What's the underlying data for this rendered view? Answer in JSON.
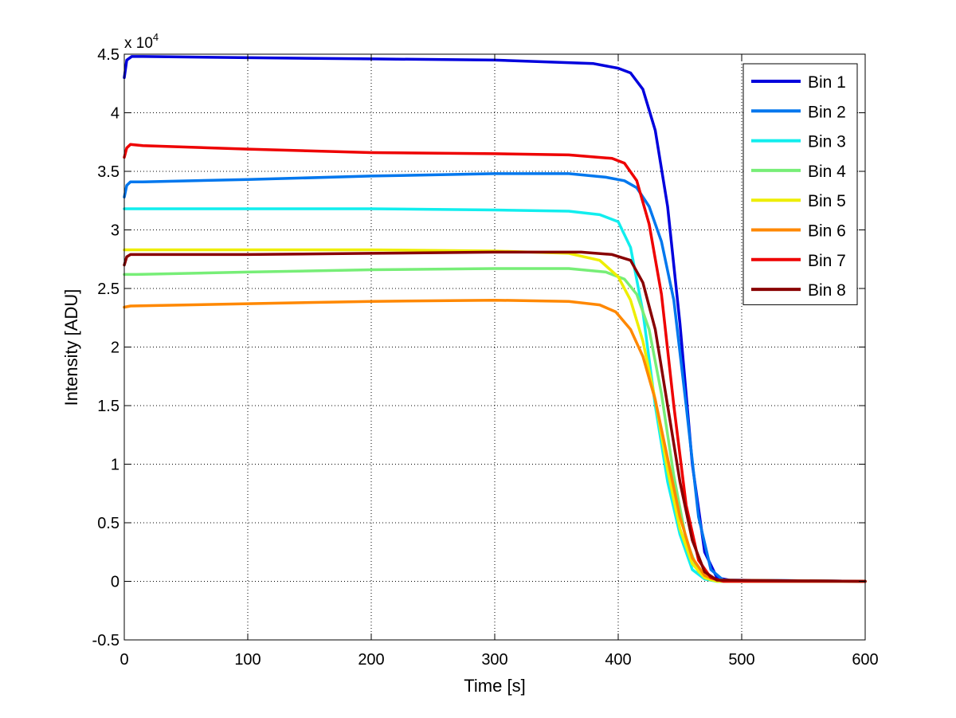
{
  "chart_data": {
    "type": "line",
    "xlabel": "Time [s]",
    "ylabel": "Intensity [ADU]",
    "y_multiplier": {
      "base": "x 10",
      "exponent": "4",
      "value": 10000
    },
    "xlim": [
      0,
      600
    ],
    "ylim": [
      -0.5,
      4.5
    ],
    "x_ticks": [
      0,
      100,
      200,
      300,
      400,
      500,
      600
    ],
    "x_tick_labels": [
      "0",
      "100",
      "200",
      "300",
      "400",
      "500",
      "600"
    ],
    "y_ticks": [
      -0.5,
      0,
      0.5,
      1,
      1.5,
      2,
      2.5,
      3,
      3.5,
      4,
      4.5
    ],
    "y_tick_labels": [
      "-0.5",
      "0",
      "0.5",
      "1",
      "1.5",
      "2",
      "2.5",
      "3",
      "3.5",
      "4",
      "4.5"
    ],
    "grid": true,
    "legend_position": "top-right",
    "series": [
      {
        "name": "Bin 1",
        "color": "#0000dd",
        "points": [
          [
            0,
            4.3
          ],
          [
            2,
            4.45
          ],
          [
            6,
            4.48
          ],
          [
            15,
            4.48
          ],
          [
            100,
            4.47
          ],
          [
            200,
            4.46
          ],
          [
            300,
            4.45
          ],
          [
            380,
            4.42
          ],
          [
            400,
            4.38
          ],
          [
            410,
            4.34
          ],
          [
            420,
            4.2
          ],
          [
            430,
            3.85
          ],
          [
            440,
            3.2
          ],
          [
            450,
            2.2
          ],
          [
            460,
            1.0
          ],
          [
            470,
            0.25
          ],
          [
            480,
            0.03
          ],
          [
            490,
            0.01
          ],
          [
            600,
            0.0
          ]
        ]
      },
      {
        "name": "Bin 2",
        "color": "#0077ee",
        "points": [
          [
            0,
            3.28
          ],
          [
            2,
            3.38
          ],
          [
            5,
            3.41
          ],
          [
            15,
            3.41
          ],
          [
            100,
            3.43
          ],
          [
            200,
            3.46
          ],
          [
            300,
            3.48
          ],
          [
            360,
            3.48
          ],
          [
            390,
            3.45
          ],
          [
            405,
            3.42
          ],
          [
            415,
            3.36
          ],
          [
            425,
            3.2
          ],
          [
            435,
            2.9
          ],
          [
            445,
            2.4
          ],
          [
            455,
            1.5
          ],
          [
            465,
            0.55
          ],
          [
            475,
            0.1
          ],
          [
            485,
            0.01
          ],
          [
            600,
            0.0
          ]
        ]
      },
      {
        "name": "Bin 3",
        "color": "#11eeee",
        "points": [
          [
            0,
            3.18
          ],
          [
            10,
            3.18
          ],
          [
            100,
            3.18
          ],
          [
            200,
            3.18
          ],
          [
            300,
            3.17
          ],
          [
            360,
            3.16
          ],
          [
            385,
            3.13
          ],
          [
            400,
            3.07
          ],
          [
            410,
            2.85
          ],
          [
            420,
            2.3
          ],
          [
            430,
            1.5
          ],
          [
            440,
            0.85
          ],
          [
            450,
            0.4
          ],
          [
            460,
            0.1
          ],
          [
            470,
            0.02
          ],
          [
            480,
            0.0
          ],
          [
            600,
            0.0
          ]
        ]
      },
      {
        "name": "Bin 4",
        "color": "#77ee77",
        "points": [
          [
            0,
            2.62
          ],
          [
            10,
            2.62
          ],
          [
            100,
            2.64
          ],
          [
            200,
            2.66
          ],
          [
            300,
            2.67
          ],
          [
            360,
            2.67
          ],
          [
            390,
            2.64
          ],
          [
            405,
            2.58
          ],
          [
            415,
            2.45
          ],
          [
            425,
            2.15
          ],
          [
            435,
            1.6
          ],
          [
            445,
            0.9
          ],
          [
            455,
            0.35
          ],
          [
            465,
            0.08
          ],
          [
            475,
            0.01
          ],
          [
            600,
            0.0
          ]
        ]
      },
      {
        "name": "Bin 5",
        "color": "#eeee00",
        "points": [
          [
            0,
            2.83
          ],
          [
            10,
            2.83
          ],
          [
            100,
            2.83
          ],
          [
            200,
            2.83
          ],
          [
            300,
            2.82
          ],
          [
            360,
            2.8
          ],
          [
            385,
            2.74
          ],
          [
            400,
            2.6
          ],
          [
            410,
            2.4
          ],
          [
            420,
            2.05
          ],
          [
            430,
            1.55
          ],
          [
            440,
            0.95
          ],
          [
            450,
            0.45
          ],
          [
            460,
            0.15
          ],
          [
            470,
            0.03
          ],
          [
            480,
            0.0
          ],
          [
            600,
            0.0
          ]
        ]
      },
      {
        "name": "Bin 6",
        "color": "#ff8800",
        "points": [
          [
            0,
            2.34
          ],
          [
            5,
            2.35
          ],
          [
            100,
            2.37
          ],
          [
            200,
            2.39
          ],
          [
            300,
            2.4
          ],
          [
            360,
            2.39
          ],
          [
            385,
            2.36
          ],
          [
            398,
            2.3
          ],
          [
            410,
            2.15
          ],
          [
            420,
            1.92
          ],
          [
            430,
            1.55
          ],
          [
            440,
            1.05
          ],
          [
            450,
            0.55
          ],
          [
            460,
            0.2
          ],
          [
            470,
            0.05
          ],
          [
            480,
            0.01
          ],
          [
            600,
            0.0
          ]
        ]
      },
      {
        "name": "Bin 7",
        "color": "#ee0000",
        "points": [
          [
            0,
            3.62
          ],
          [
            2,
            3.7
          ],
          [
            5,
            3.73
          ],
          [
            15,
            3.72
          ],
          [
            100,
            3.69
          ],
          [
            200,
            3.66
          ],
          [
            300,
            3.65
          ],
          [
            360,
            3.64
          ],
          [
            395,
            3.61
          ],
          [
            405,
            3.57
          ],
          [
            415,
            3.42
          ],
          [
            425,
            3.05
          ],
          [
            435,
            2.45
          ],
          [
            445,
            1.5
          ],
          [
            455,
            0.65
          ],
          [
            465,
            0.18
          ],
          [
            475,
            0.03
          ],
          [
            485,
            0.0
          ],
          [
            600,
            0.0
          ]
        ]
      },
      {
        "name": "Bin 8",
        "color": "#880000",
        "points": [
          [
            0,
            2.7
          ],
          [
            2,
            2.77
          ],
          [
            5,
            2.79
          ],
          [
            15,
            2.79
          ],
          [
            100,
            2.79
          ],
          [
            200,
            2.8
          ],
          [
            300,
            2.81
          ],
          [
            370,
            2.81
          ],
          [
            395,
            2.79
          ],
          [
            410,
            2.74
          ],
          [
            420,
            2.55
          ],
          [
            430,
            2.15
          ],
          [
            440,
            1.5
          ],
          [
            450,
            0.85
          ],
          [
            460,
            0.35
          ],
          [
            470,
            0.08
          ],
          [
            480,
            0.01
          ],
          [
            600,
            0.0
          ]
        ]
      }
    ]
  }
}
